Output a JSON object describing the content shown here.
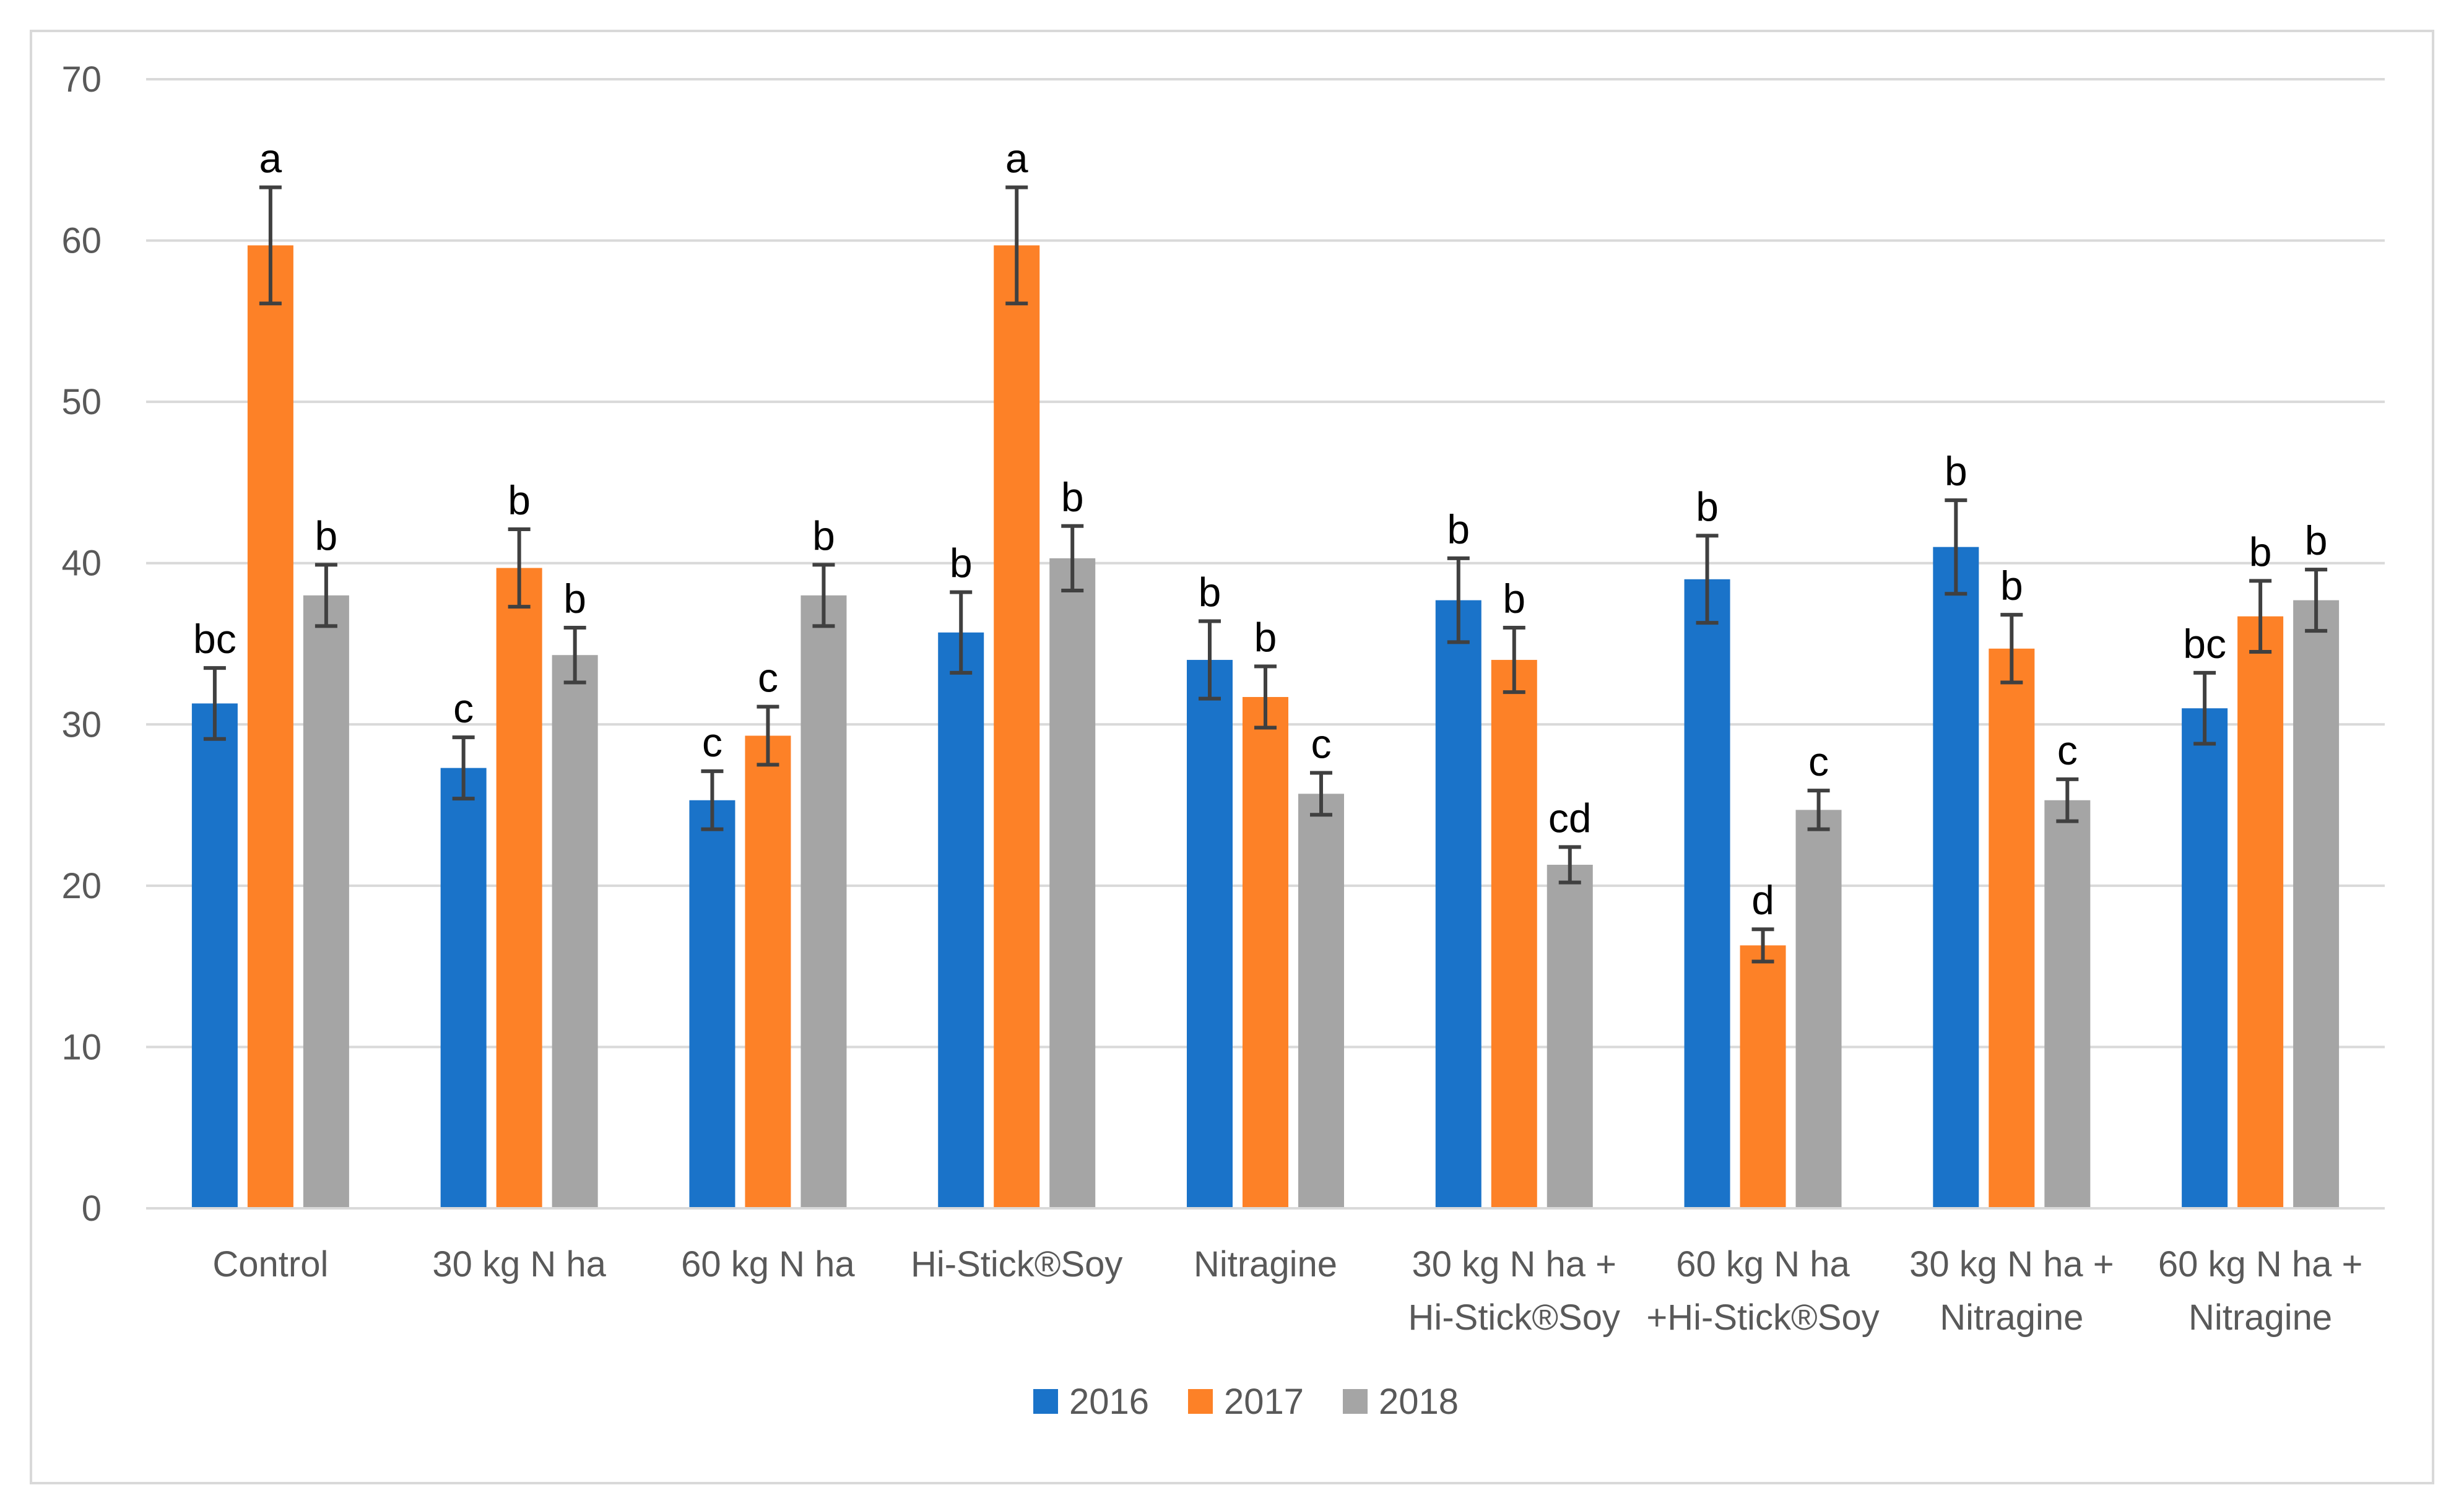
{
  "chart_data": {
    "type": "bar",
    "title": "",
    "xlabel": "",
    "ylabel": "",
    "ylim": [
      0,
      70
    ],
    "yticks": [
      0,
      10,
      20,
      30,
      40,
      50,
      60,
      70
    ],
    "grid": true,
    "legend_position": "bottom",
    "categories": [
      [
        "Control"
      ],
      [
        "30 kg N ha"
      ],
      [
        "60 kg N ha"
      ],
      [
        "Hi-Stick®Soy"
      ],
      [
        "Nitragine"
      ],
      [
        "30 kg N ha +",
        "Hi-Stick®Soy"
      ],
      [
        "60 kg N ha",
        "+Hi-Stick®Soy"
      ],
      [
        "30 kg N ha +",
        "Nitragine"
      ],
      [
        "60 kg N ha +",
        "Nitragine"
      ]
    ],
    "series": [
      {
        "name": "2016",
        "color": "#1a73c9",
        "values": [
          31.3,
          27.3,
          25.3,
          35.7,
          34.0,
          37.7,
          39.0,
          41.0,
          31.0
        ],
        "errors": [
          2.2,
          1.9,
          1.8,
          2.5,
          2.4,
          2.6,
          2.7,
          2.9,
          2.2
        ],
        "letters": [
          "bc",
          "c",
          "c",
          "b",
          "b",
          "b",
          "b",
          "b",
          "bc"
        ]
      },
      {
        "name": "2017",
        "color": "#fd8127",
        "values": [
          59.7,
          39.7,
          29.3,
          59.7,
          31.7,
          34.0,
          16.3,
          34.7,
          36.7
        ],
        "errors": [
          3.6,
          2.4,
          1.8,
          3.6,
          1.9,
          2.0,
          1.0,
          2.1,
          2.2
        ],
        "letters": [
          "a",
          "b",
          "c",
          "a",
          "b",
          "b",
          "d",
          "b",
          "b"
        ]
      },
      {
        "name": "2018",
        "color": "#a5a5a5",
        "values": [
          38.0,
          34.3,
          38.0,
          40.3,
          25.7,
          21.3,
          24.7,
          25.3,
          37.7
        ],
        "errors": [
          1.9,
          1.7,
          1.9,
          2.0,
          1.3,
          1.1,
          1.2,
          1.3,
          1.9
        ],
        "letters": [
          "b",
          "b",
          "b",
          "b",
          "c",
          "cd",
          "c",
          "c",
          "b"
        ]
      }
    ]
  }
}
